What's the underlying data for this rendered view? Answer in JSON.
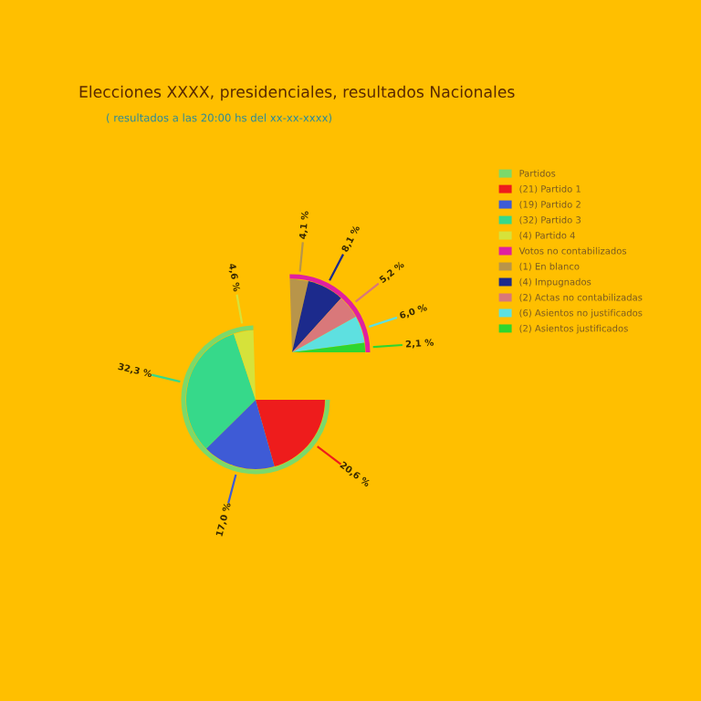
{
  "chart_data": {
    "type": "pie",
    "title": "Elecciones XXXX, presidenciales, resultados Nacionales",
    "subtitle": "( resultados a las 20:00 hs del xx-xx-xxxx)",
    "categories": [
      "(21) Partido 1",
      "(19) Partido 2",
      "(32) Partido 3",
      "(4) Partido 4",
      "(1) En blanco",
      "(4) Impugnados",
      "(2) Actas no contabilizadas",
      "(6) Asientos no justificados",
      "(2) Asientos justificados"
    ],
    "colors": [
      "#ee1c1c",
      "#3e5bd6",
      "#36d98a",
      "#d6e23a",
      "#b8954a",
      "#1c2a8c",
      "#d9787a",
      "#5ee0e0",
      "#2ed62e"
    ],
    "series": [
      {
        "values": [
          20.6,
          17.0,
          32.3,
          4.6,
          null,
          null,
          null,
          null,
          null
        ]
      },
      {
        "values": [
          null,
          null,
          null,
          null,
          4.1,
          8.1,
          5.2,
          6.0,
          2.1
        ]
      }
    ],
    "annotations": [
      "Partidos",
      "Votos no contabilizados"
    ],
    "value_labels": [
      "20,6 %",
      "17,0 %",
      "32,3 %",
      "4,6 %",
      "4,1 %",
      "8,1 %",
      "5,2 %",
      "6,0 %",
      "2,1 %"
    ],
    "legend": "right"
  }
}
